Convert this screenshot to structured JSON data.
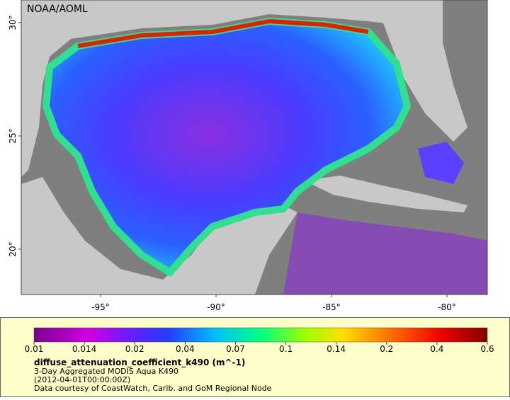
{
  "map": {
    "credit": "NOAA/AOML",
    "lat_labels": [
      "30°",
      "25°",
      "20°"
    ],
    "lon_labels": [
      "-95°",
      "-90°",
      "-85°",
      "-80°"
    ]
  },
  "legend": {
    "ticks": [
      "0.01",
      "0.014",
      "0.02",
      "0.04",
      "0.07",
      "0.1",
      "0.14",
      "0.2",
      "0.4",
      "0.6"
    ],
    "variable": "diffuse_attenuation_coefficient_k490 (m^-1)",
    "description": "3-Day Aggregated MODIS Aqua K490",
    "time": "(2012-04-01T00:00:00Z)",
    "source": "Data courtesy of CoastWatch, Carib. and GoM Regional Node"
  }
}
